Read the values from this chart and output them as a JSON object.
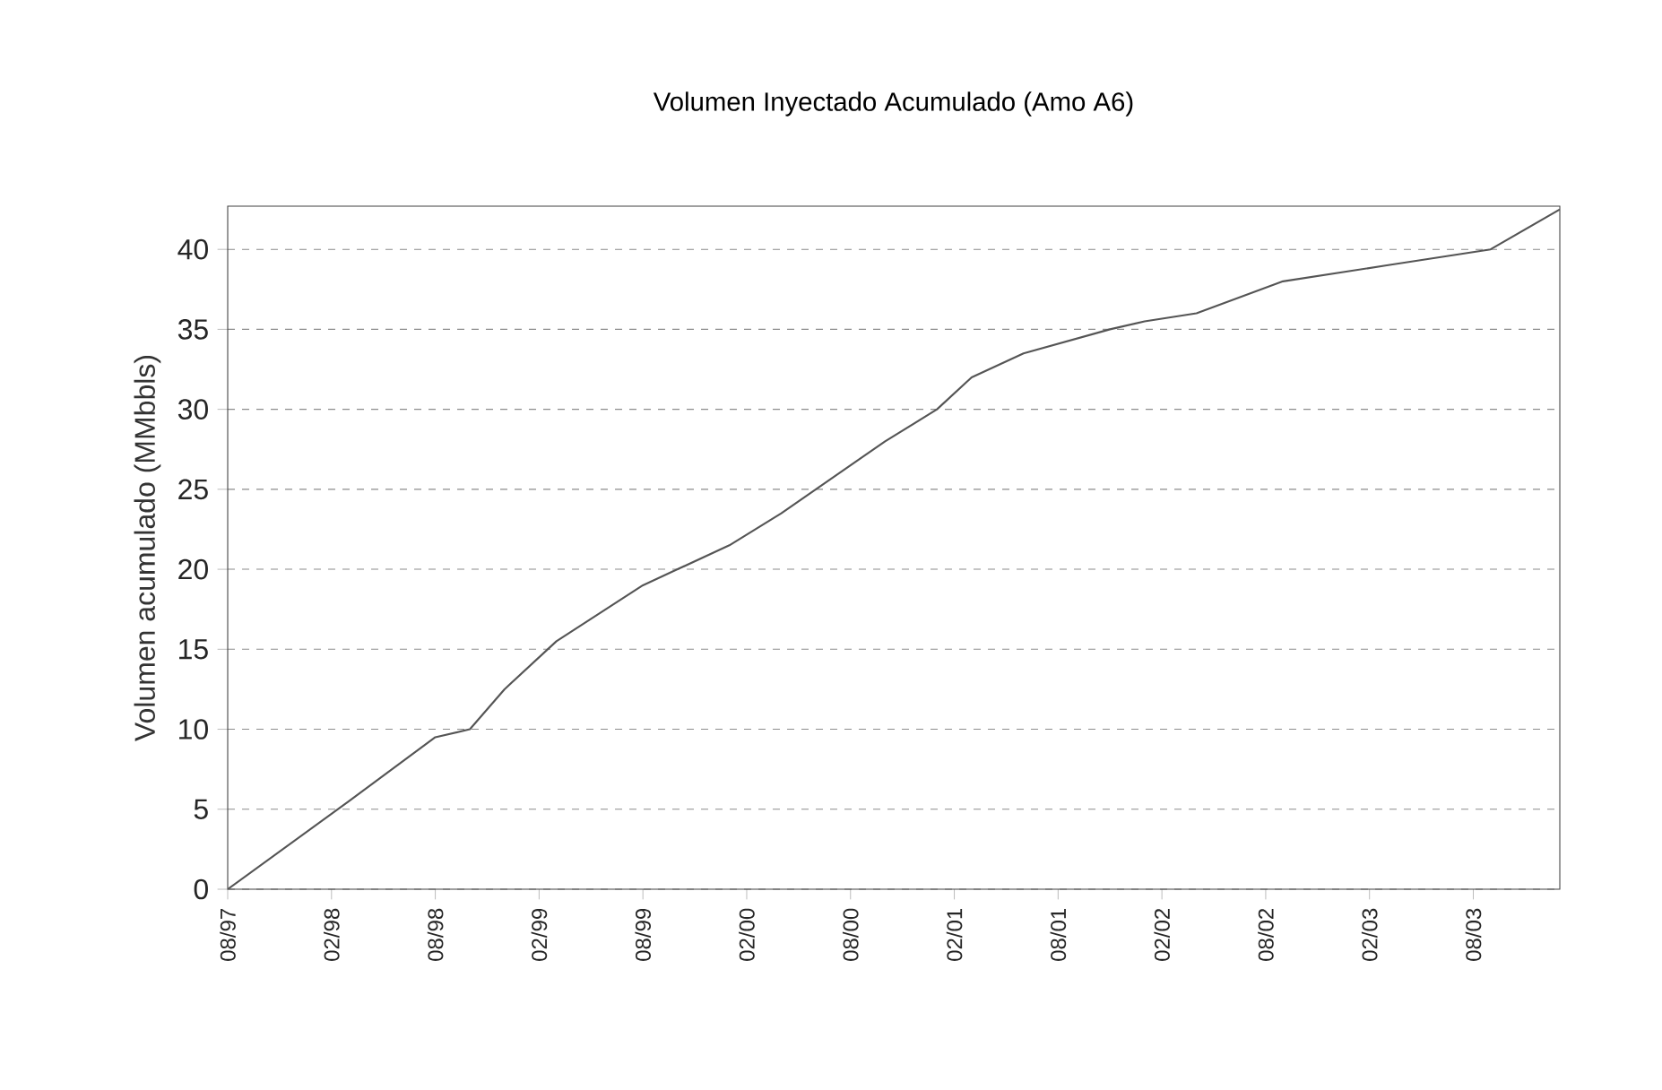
{
  "chart_data": {
    "type": "line",
    "title": "Volumen Inyectado Acumulado (Amo A6)",
    "ylabel": "Volumen acumulado (MMbbls)",
    "x": [
      "1997-08",
      "1998-03",
      "1998-08",
      "1998-10",
      "1998-12",
      "1999-03",
      "1999-08",
      "1999-10",
      "2000-01",
      "2000-04",
      "2000-10",
      "2001-01",
      "2001-03",
      "2001-06",
      "2001-11",
      "2002-01",
      "2002-04",
      "2002-09",
      "2003-03",
      "2003-09",
      "2004-01"
    ],
    "series": [
      {
        "color": "#555555",
        "values": [
          0,
          5.5,
          9.5,
          10,
          12.5,
          15.5,
          19,
          20,
          21.5,
          23.5,
          28,
          30,
          32,
          33.5,
          35,
          35.5,
          36,
          38,
          39,
          40,
          42.5
        ]
      }
    ],
    "xlim": [
      "1997-08",
      "2004-01"
    ],
    "xticks": [
      {
        "value": "1997-08",
        "label": "08/97"
      },
      {
        "value": "1998-02",
        "label": "02/98"
      },
      {
        "value": "1998-08",
        "label": "08/98"
      },
      {
        "value": "1999-02",
        "label": "02/99"
      },
      {
        "value": "1999-08",
        "label": "08/99"
      },
      {
        "value": "2000-02",
        "label": "02/00"
      },
      {
        "value": "2000-08",
        "label": "08/00"
      },
      {
        "value": "2001-02",
        "label": "02/01"
      },
      {
        "value": "2001-08",
        "label": "08/01"
      },
      {
        "value": "2002-02",
        "label": "02/02"
      },
      {
        "value": "2002-08",
        "label": "08/02"
      },
      {
        "value": "2003-02",
        "label": "02/03"
      },
      {
        "value": "2003-08",
        "label": "08/03"
      }
    ],
    "ylim": [
      0,
      42.7
    ],
    "yticks": [
      0,
      5,
      10,
      15,
      20,
      25,
      30,
      35,
      40
    ],
    "grid": "y",
    "marker": "none",
    "line_style": "solid"
  }
}
